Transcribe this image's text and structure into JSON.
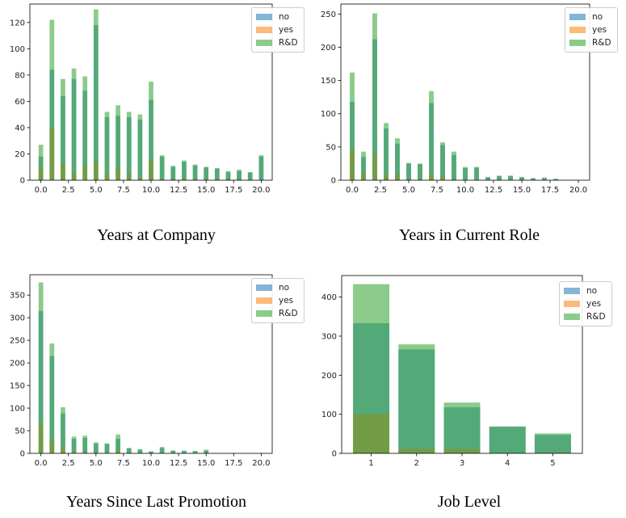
{
  "colors": {
    "no": "#1f77b4",
    "yes": "#ff7f0e",
    "rd": "#2ca02c",
    "opacity": 0.55
  },
  "chart_data": [
    {
      "id": "company",
      "type": "bar",
      "title": "Years at Company",
      "xlim": [
        -1,
        21
      ],
      "ylim": [
        0,
        134
      ],
      "xticks": [
        0,
        2.5,
        5,
        7.5,
        10,
        12.5,
        15,
        17.5,
        20
      ],
      "xtick_labels": [
        "0.0",
        "2.5",
        "5.0",
        "7.5",
        "10.0",
        "12.5",
        "15.0",
        "17.5",
        "20.0"
      ],
      "yticks": [
        0,
        20,
        40,
        60,
        80,
        100,
        120
      ],
      "bar_width": 0.42,
      "legend": [
        "no",
        "yes",
        "R&D"
      ],
      "series": [
        {
          "key": "no",
          "label": "no",
          "x": [
            0,
            1,
            2,
            3,
            4,
            5,
            6,
            7,
            8,
            9,
            10,
            11,
            12,
            13,
            14,
            15,
            16,
            17,
            18,
            19,
            20
          ],
          "values": [
            18,
            84,
            64,
            77,
            68,
            118,
            48,
            49,
            48,
            46,
            61,
            18,
            10,
            14,
            11,
            10,
            9,
            6,
            7,
            6,
            18
          ]
        },
        {
          "key": "yes",
          "label": "yes",
          "x": [
            0,
            1,
            2,
            3,
            4,
            5,
            6,
            7,
            8,
            9,
            10,
            11,
            12,
            13,
            14,
            15,
            16,
            17,
            18,
            19,
            20
          ],
          "values": [
            10,
            40,
            13,
            6,
            11,
            14,
            5,
            9,
            5,
            2,
            15,
            1,
            1,
            1,
            1,
            1,
            1,
            1,
            1,
            0,
            0
          ]
        },
        {
          "key": "rd",
          "label": "R&D",
          "x": [
            0,
            1,
            2,
            3,
            4,
            5,
            6,
            7,
            8,
            9,
            10,
            11,
            12,
            13,
            14,
            15,
            16,
            17,
            18,
            19,
            20
          ],
          "values": [
            27,
            122,
            77,
            85,
            79,
            130,
            52,
            57,
            52,
            50,
            75,
            19,
            11,
            15,
            12,
            10,
            9,
            7,
            8,
            6,
            19
          ]
        }
      ]
    },
    {
      "id": "role",
      "type": "bar",
      "title": "Years in Current Role",
      "xlim": [
        -1,
        21
      ],
      "ylim": [
        0,
        265
      ],
      "xticks": [
        0,
        2.5,
        5,
        7.5,
        10,
        12.5,
        15,
        17.5,
        20
      ],
      "xtick_labels": [
        "0.0",
        "2.5",
        "5.0",
        "7.5",
        "10.0",
        "12.5",
        "15.0",
        "17.5",
        "20.0"
      ],
      "yticks": [
        0,
        50,
        100,
        150,
        200,
        250
      ],
      "bar_width": 0.42,
      "legend": [
        "no",
        "yes",
        "R&D"
      ],
      "series": [
        {
          "key": "no",
          "label": "no",
          "x": [
            0,
            1,
            2,
            3,
            4,
            5,
            6,
            7,
            8,
            9,
            10,
            11,
            12,
            13,
            14,
            15,
            16,
            17,
            18
          ],
          "values": [
            118,
            35,
            212,
            78,
            55,
            25,
            24,
            116,
            53,
            38,
            18,
            19,
            4,
            6,
            6,
            4,
            3,
            3,
            2
          ]
        },
        {
          "key": "yes",
          "label": "yes",
          "x": [
            0,
            1,
            2,
            3,
            4,
            5,
            6,
            7,
            8,
            9,
            10,
            11,
            12,
            13,
            14,
            15,
            16,
            17,
            18
          ],
          "values": [
            46,
            10,
            40,
            8,
            10,
            1,
            2,
            9,
            5,
            2,
            1,
            1,
            0,
            0,
            0,
            0,
            0,
            0,
            0
          ]
        },
        {
          "key": "rd",
          "label": "R&D",
          "x": [
            0,
            1,
            2,
            3,
            4,
            5,
            6,
            7,
            8,
            9,
            10,
            11,
            12,
            13,
            14,
            15,
            16,
            17,
            18
          ],
          "values": [
            162,
            43,
            251,
            86,
            63,
            26,
            25,
            134,
            57,
            43,
            20,
            20,
            5,
            7,
            7,
            5,
            3,
            4,
            2
          ]
        }
      ]
    },
    {
      "id": "promotion",
      "type": "bar",
      "title": "Years Since Last Promotion",
      "xlim": [
        -1,
        21
      ],
      "ylim": [
        0,
        395
      ],
      "xticks": [
        0,
        2.5,
        5,
        7.5,
        10,
        12.5,
        15,
        17.5,
        20
      ],
      "xtick_labels": [
        "0.0",
        "2.5",
        "5.0",
        "7.5",
        "10.0",
        "12.5",
        "15.0",
        "17.5",
        "20.0"
      ],
      "yticks": [
        0,
        50,
        100,
        150,
        200,
        250,
        300,
        350
      ],
      "bar_width": 0.42,
      "legend": [
        "no",
        "yes",
        "R&D"
      ],
      "series": [
        {
          "key": "no",
          "label": "no",
          "x": [
            0,
            1,
            2,
            3,
            4,
            5,
            6,
            7,
            8,
            9,
            10,
            11,
            12,
            13,
            14,
            15
          ],
          "values": [
            315,
            215,
            88,
            32,
            34,
            22,
            21,
            32,
            11,
            8,
            4,
            12,
            6,
            5,
            5,
            6
          ]
        },
        {
          "key": "yes",
          "label": "yes",
          "x": [
            0,
            1,
            2,
            3,
            4,
            5,
            6,
            7,
            8,
            9,
            10,
            11,
            12,
            13,
            14,
            15
          ],
          "values": [
            65,
            30,
            15,
            5,
            4,
            2,
            2,
            8,
            1,
            1,
            0,
            2,
            0,
            1,
            0,
            1
          ]
        },
        {
          "key": "rd",
          "label": "R&D",
          "x": [
            0,
            1,
            2,
            3,
            4,
            5,
            6,
            7,
            8,
            9,
            10,
            11,
            12,
            13,
            14,
            15
          ],
          "values": [
            378,
            243,
            102,
            37,
            39,
            24,
            22,
            42,
            12,
            9,
            4,
            14,
            6,
            6,
            5,
            8
          ]
        }
      ]
    },
    {
      "id": "joblevel",
      "type": "bar",
      "title": "Job Level",
      "xlim": [
        0.35,
        5.65
      ],
      "ylim": [
        0,
        455
      ],
      "xticks": [
        1,
        2,
        3,
        4,
        5
      ],
      "xtick_labels": [
        "1",
        "2",
        "3",
        "4",
        "5"
      ],
      "yticks": [
        0,
        100,
        200,
        300,
        400
      ],
      "bar_width": 0.8,
      "legend": [
        "no",
        "yes",
        "R&D"
      ],
      "series": [
        {
          "key": "no",
          "label": "no",
          "x": [
            1,
            2,
            3,
            4,
            5
          ],
          "values": [
            333,
            266,
            118,
            68,
            47
          ]
        },
        {
          "key": "yes",
          "label": "yes",
          "x": [
            1,
            2,
            3,
            4,
            5
          ],
          "values": [
            101,
            12,
            11,
            1,
            2
          ]
        },
        {
          "key": "rd",
          "label": "R&D",
          "x": [
            1,
            2,
            3,
            4,
            5
          ],
          "values": [
            433,
            279,
            130,
            69,
            51
          ]
        }
      ]
    }
  ]
}
